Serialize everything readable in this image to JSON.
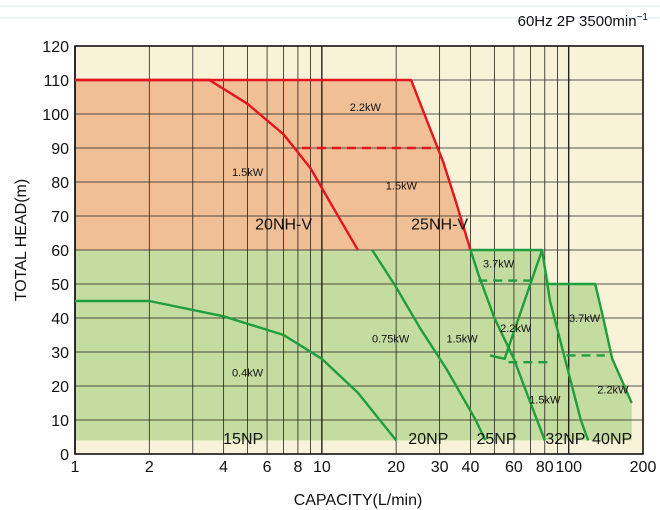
{
  "chart_data": {
    "type": "area",
    "subtitle": "60Hz 2P 3500min",
    "subtitle_sup": "−1",
    "xlabel": "CAPACITY(L/min)",
    "ylabel": "TOTAL HEAD(m)",
    "x_scale": "log",
    "xlim": [
      1,
      200
    ],
    "ylim": [
      0,
      120
    ],
    "x_ticks": [
      1,
      2,
      4,
      6,
      8,
      10,
      20,
      30,
      40,
      60,
      80,
      100,
      200
    ],
    "x_tick_labels": [
      "1",
      "2",
      "4",
      "6",
      "8",
      "10",
      "20",
      "30",
      "40",
      "60",
      "80",
      "100",
      "200"
    ],
    "y_ticks": [
      0,
      10,
      20,
      30,
      40,
      50,
      60,
      70,
      80,
      90,
      100,
      110,
      120
    ],
    "grid": true,
    "colors": {
      "background": "#f8f2d8",
      "nh_region": "#f0bf95",
      "np_region": "#c5dca0",
      "nh_curve": "#e6141e",
      "np_curve": "#1e9e3c"
    },
    "regions": [
      {
        "name": "20NH-V",
        "group": "NH",
        "label_x": 7,
        "label_y": 66
      },
      {
        "name": "25NH-V",
        "group": "NH",
        "label_x": 30,
        "label_y": 66
      },
      {
        "name": "15NP",
        "group": "NP",
        "label_x": 4.8,
        "label_y": 3
      },
      {
        "name": "20NP",
        "group": "NP",
        "label_x": 27,
        "label_y": 3
      },
      {
        "name": "25NP",
        "group": "NP",
        "label_x": 51,
        "label_y": 3
      },
      {
        "name": "32NP",
        "group": "NP",
        "label_x": 97,
        "label_y": 3
      },
      {
        "name": "40NP",
        "group": "NP",
        "label_x": 150,
        "label_y": 3
      }
    ],
    "series": [
      {
        "name": "20NH-V",
        "color": "#e6141e",
        "dashed": false,
        "points": [
          [
            1,
            110
          ],
          [
            3.5,
            110
          ],
          [
            5,
            103
          ],
          [
            7,
            94
          ],
          [
            9,
            84
          ],
          [
            11,
            73
          ],
          [
            14,
            60
          ]
        ]
      },
      {
        "name": "25NH-V",
        "color": "#e6141e",
        "dashed": false,
        "points": [
          [
            1,
            110
          ],
          [
            23,
            110
          ],
          [
            27,
            97
          ],
          [
            31,
            86
          ],
          [
            35,
            74
          ],
          [
            40,
            60
          ]
        ]
      },
      {
        "name": "25NH-V 1.5kW/2.2kW",
        "color": "#e6141e",
        "dashed": true,
        "points": [
          [
            8.3,
            90
          ],
          [
            30,
            90
          ]
        ]
      },
      {
        "name": "15NP",
        "color": "#1e9e3c",
        "dashed": false,
        "points": [
          [
            1,
            45
          ],
          [
            2,
            45
          ],
          [
            4,
            40.5
          ],
          [
            7,
            35
          ],
          [
            10,
            28
          ],
          [
            14,
            18
          ],
          [
            20,
            4
          ]
        ]
      },
      {
        "name": "20NP",
        "color": "#1e9e3c",
        "dashed": false,
        "points": [
          [
            16,
            60
          ],
          [
            20,
            49
          ],
          [
            25,
            37
          ],
          [
            32,
            25
          ],
          [
            42,
            10
          ],
          [
            46,
            4
          ]
        ]
      },
      {
        "name": "25NP",
        "color": "#1e9e3c",
        "dashed": false,
        "points": [
          [
            40,
            60
          ],
          [
            43,
            53
          ],
          [
            50,
            40
          ],
          [
            60,
            28
          ],
          [
            70,
            15
          ],
          [
            80,
            4
          ]
        ]
      },
      {
        "name": "25NP 2.2kW/3.7kW",
        "color": "#1e9e3c",
        "dashed": true,
        "points": [
          [
            43,
            51
          ],
          [
            70,
            51
          ]
        ]
      },
      {
        "name": "25NP cap",
        "color": "#1e9e3c",
        "dashed": false,
        "points": [
          [
            40,
            60
          ],
          [
            78,
            60
          ]
        ]
      },
      {
        "name": "32NP",
        "color": "#1e9e3c",
        "dashed": false,
        "points": [
          [
            48,
            29
          ],
          [
            55,
            28
          ],
          [
            78,
            60
          ],
          [
            84,
            45
          ],
          [
            95,
            30
          ],
          [
            112,
            10
          ],
          [
            120,
            4
          ]
        ]
      },
      {
        "name": "32NP 1.5kW/2.2kW",
        "color": "#1e9e3c",
        "dashed": true,
        "points": [
          [
            57,
            27
          ],
          [
            84,
            27
          ]
        ]
      },
      {
        "name": "40NP",
        "color": "#1e9e3c",
        "dashed": false,
        "points": [
          [
            80,
            50
          ],
          [
            128,
            50
          ],
          [
            138,
            40
          ],
          [
            150,
            28
          ],
          [
            168,
            20
          ],
          [
            180,
            15
          ]
        ]
      },
      {
        "name": "40NP 2.2kW/3.7kW",
        "color": "#1e9e3c",
        "dashed": true,
        "points": [
          [
            98,
            29
          ],
          [
            140,
            29
          ]
        ]
      }
    ],
    "kw_labels": [
      {
        "text": "2.2kW",
        "x": 15,
        "y": 102
      },
      {
        "text": "1.5kW",
        "x": 5,
        "y": 83
      },
      {
        "text": "1.5kW",
        "x": 21,
        "y": 79
      },
      {
        "text": "3.7kW",
        "x": 52,
        "y": 56
      },
      {
        "text": "2.2kW",
        "x": 61,
        "y": 37
      },
      {
        "text": "3.7kW",
        "x": 116,
        "y": 40
      },
      {
        "text": "0.75kW",
        "x": 19,
        "y": 34
      },
      {
        "text": "1.5kW",
        "x": 37,
        "y": 34
      },
      {
        "text": "0.4kW",
        "x": 5,
        "y": 24
      },
      {
        "text": "2.2kW",
        "x": 151,
        "y": 19
      },
      {
        "text": "1.5kW",
        "x": 80,
        "y": 16
      }
    ]
  }
}
